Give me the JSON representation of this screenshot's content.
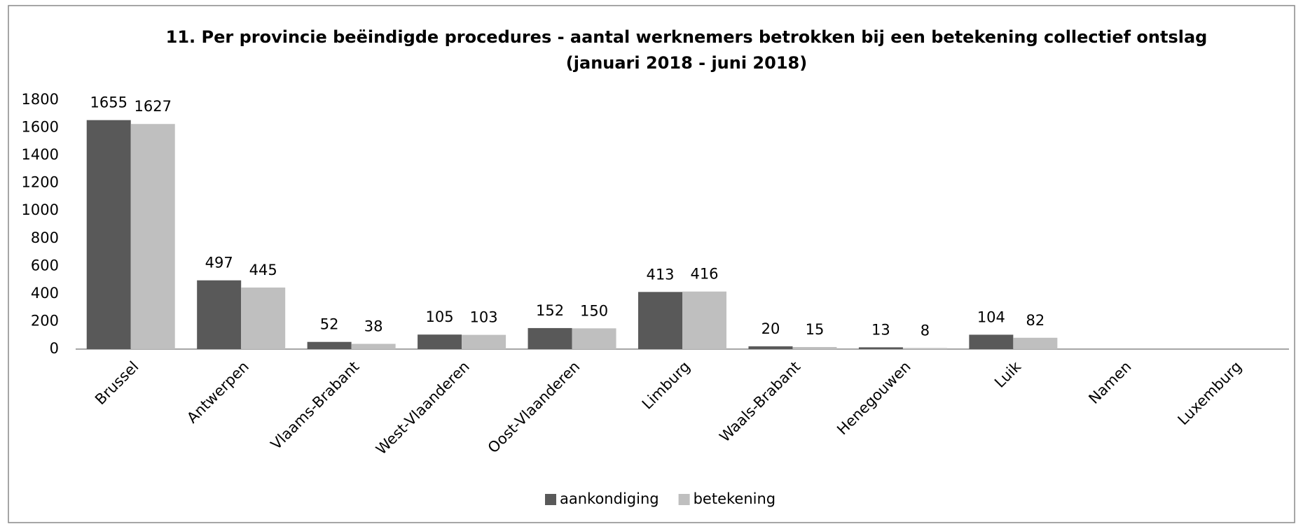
{
  "chart_data": {
    "type": "bar",
    "title": "11. Per provincie beëindigde procedures - aantal werknemers betrokken bij een betekening collectief ontslag",
    "subtitle": "(januari 2018 - juni 2018)",
    "categories": [
      "Brussel",
      "Antwerpen",
      "Vlaams-Brabant",
      "West-Vlaanderen",
      "Oost-Vlaanderen",
      "Limburg",
      "Waals-Brabant",
      "Henegouwen",
      "Luik",
      "Namen",
      "Luxemburg"
    ],
    "series": [
      {
        "name": "aankondiging",
        "color": "#595959",
        "values": [
          1655,
          497,
          52,
          105,
          152,
          413,
          20,
          13,
          104,
          null,
          null
        ]
      },
      {
        "name": "betekening",
        "color": "#bfbfbf",
        "values": [
          1627,
          445,
          38,
          103,
          150,
          416,
          15,
          8,
          82,
          null,
          null
        ]
      }
    ],
    "ylim": [
      0,
      1800
    ],
    "yticks": [
      0,
      200,
      400,
      600,
      800,
      1000,
      1200,
      1400,
      1600,
      1800
    ],
    "grid": false,
    "legend": "bottom"
  }
}
